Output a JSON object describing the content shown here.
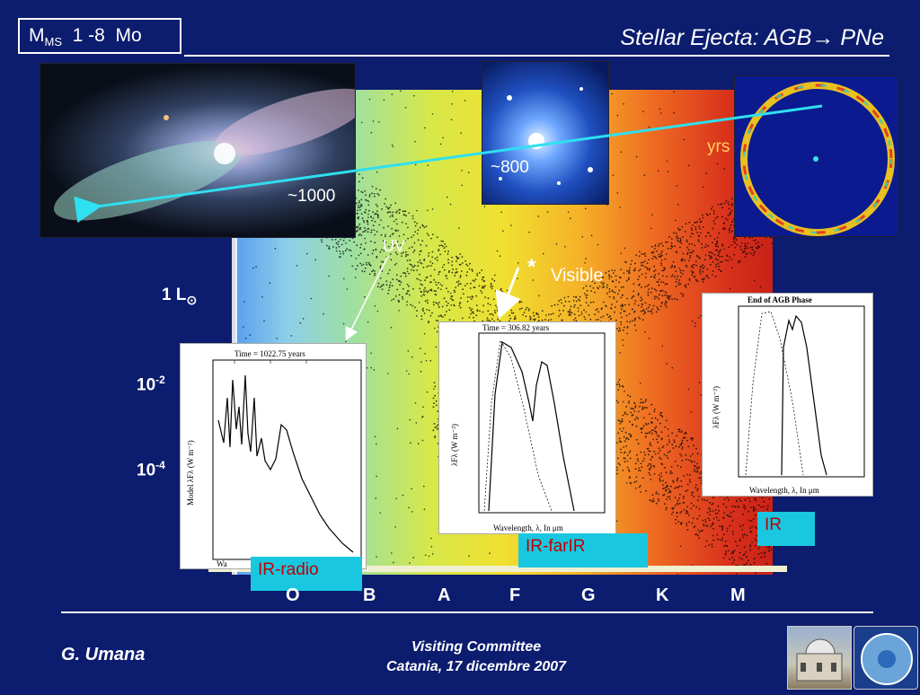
{
  "header": {
    "mass_main": "M",
    "mass_sub": "MS",
    "mass_rest": "  1 -8  Mo",
    "title": "Stellar Ejecta: AGB→ PNe"
  },
  "annotations": {
    "age_1000": "~1000",
    "age_800": "~800",
    "age_yrs": "yrs",
    "uv": "UV",
    "visible": "Visible",
    "star": "*"
  },
  "luminosity": {
    "l1": "1 L",
    "l1_sym": "⊙",
    "l2_base": "10",
    "l2_exp": "-2",
    "l3_base": "10",
    "l3_exp": "-4"
  },
  "spectral_classes": [
    "O",
    "B",
    "A",
    "F",
    "G",
    "K",
    "M"
  ],
  "bands": {
    "ir_radio": "IR-radio",
    "ir_farir": "IR-farIR",
    "ir": "IR"
  },
  "panels": {
    "p1_title": "Time = 1022.75 years",
    "p1_ylabel": "Model λFλ (W m⁻²)",
    "p1_xlabel": "Wa",
    "p2_title": "Time = 306.82 years",
    "p2_ylabel": "λFλ (W m⁻²)",
    "p2_xlabel": "Wavelength, λ, In μm",
    "p3_title": "End of AGB Phase",
    "p3_ylabel": "λFλ (W m⁻²)",
    "p3_xlabel": "Wavelength, λ, In μm"
  },
  "footer": {
    "author": "G. Umana",
    "event": "Visiting Committee",
    "place_date": "Catania, 17 dicembre 2007"
  },
  "colors": {
    "background": "#0c1c6e",
    "arrow": "#2ee0f0",
    "band_box": "#19c7e0",
    "band_text": "#c00000"
  }
}
